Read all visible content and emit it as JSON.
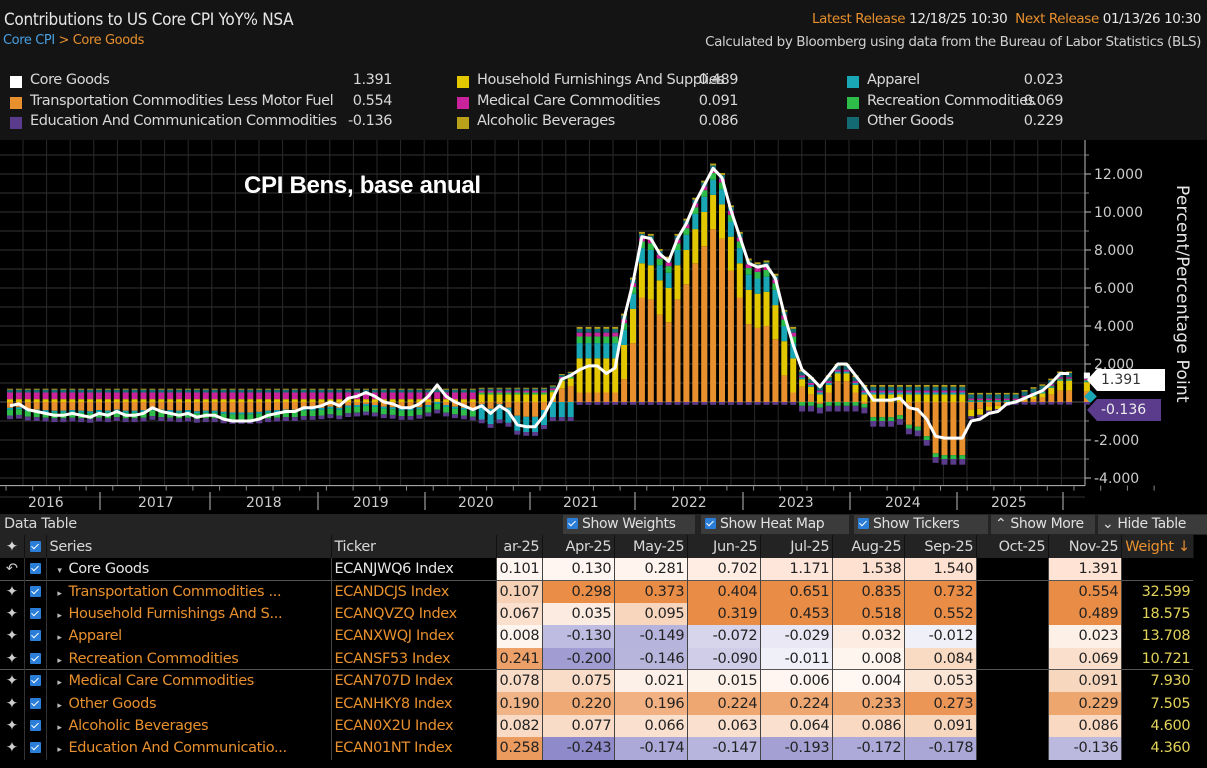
{
  "header": {
    "title": "Contributions to US Core CPI YoY% NSA",
    "breadcrumb": {
      "root": "Core CPI",
      "separator": ">",
      "current": "Core Goods"
    },
    "latest_release_label": "Latest Release",
    "latest_release_value": "12/18/25 10:30",
    "next_release_label": "Next Release",
    "next_release_value": "01/13/26 10:30",
    "source_note": "Calculated by Bloomberg using data from the Bureau of Labor Statistics (BLS)"
  },
  "legend": [
    {
      "name": "Core Goods",
      "value": "1.391",
      "color": "#ffffff"
    },
    {
      "name": "Transportation Commodities Less Motor Fuel",
      "value": "0.554",
      "color": "#e8902e"
    },
    {
      "name": "Education And Communication Commodities",
      "value": "-0.136",
      "color": "#5b3b8c"
    },
    {
      "name": "Household Furnishings And Supplies",
      "value": "0.489",
      "color": "#e3c800"
    },
    {
      "name": "Medical Care Commodities",
      "value": "0.091",
      "color": "#c8239a"
    },
    {
      "name": "Alcoholic Beverages",
      "value": "0.086",
      "color": "#b9a21a"
    },
    {
      "name": "Apparel",
      "value": "0.023",
      "color": "#19a7b5"
    },
    {
      "name": "Recreation Commodities",
      "value": "0.069",
      "color": "#2fbd4a"
    },
    {
      "name": "Other Goods",
      "value": "0.229",
      "color": "#136a72"
    }
  ],
  "annotation": "CPI Bens, base anual",
  "tags": {
    "core_goods": "1.391",
    "education": "-0.136"
  },
  "chart_data": {
    "type": "bar",
    "subtype": "stacked-bar-with-line",
    "title": "Contributions to US Core CPI YoY% NSA",
    "xlabel": "",
    "ylabel": "Percent/Percentage Point",
    "ylim": [
      -4,
      13
    ],
    "yticks": [
      "12.000",
      "10.000",
      "8.000",
      "6.000",
      "4.000",
      "2.000",
      "-2.000",
      "-4.000"
    ],
    "ytick_values": [
      12,
      10,
      8,
      6,
      4,
      2,
      -2,
      -4
    ],
    "xtick_labels": [
      "2016",
      "2017",
      "2018",
      "2019",
      "2020",
      "2021",
      "2022",
      "2023",
      "2024",
      "2025"
    ],
    "grid": true,
    "legend_position": "top",
    "x_start": "2015-12",
    "line_series": {
      "name": "Core Goods",
      "color": "#ffffff",
      "values": [
        -0.2,
        -0.1,
        -0.4,
        -0.5,
        -0.6,
        -0.7,
        -0.7,
        -0.6,
        -0.7,
        -0.8,
        -0.6,
        -0.7,
        -0.5,
        -0.7,
        -0.7,
        -0.6,
        -0.3,
        -0.5,
        -0.6,
        -0.7,
        -0.6,
        -0.8,
        -0.7,
        -0.7,
        -0.9,
        -1.0,
        -1.0,
        -1.0,
        -0.9,
        -0.7,
        -0.6,
        -0.5,
        -0.5,
        -0.3,
        -0.3,
        -0.2,
        0.0,
        -0.2,
        0.2,
        0.3,
        0.5,
        0.3,
        0.0,
        -0.1,
        -0.3,
        -0.3,
        -0.1,
        0.3,
        0.9,
        0.3,
        0.0,
        -0.2,
        -0.4,
        -0.2,
        -0.6,
        -0.2,
        -0.5,
        -1.2,
        -1.3,
        -1.3,
        -0.7,
        0.2,
        1.2,
        1.4,
        1.7,
        1.9,
        1.9,
        1.5,
        1.8,
        4.4,
        6.3,
        8.7,
        8.6,
        7.8,
        7.4,
        8.6,
        9.4,
        10.5,
        11.4,
        12.3,
        11.8,
        10.1,
        8.7,
        7.3,
        7.1,
        7.2,
        6.5,
        4.6,
        3.0,
        1.7,
        1.3,
        0.8,
        1.4,
        2.0,
        2.0,
        1.4,
        0.8,
        0.1,
        0.1,
        0.1,
        0.2,
        -0.3,
        -0.4,
        -0.9,
        -1.8,
        -1.9,
        -1.9,
        -1.9,
        -1.0,
        -0.9,
        -0.6,
        -0.5,
        -0.1,
        0.0,
        0.2,
        0.4,
        0.6,
        1.0,
        1.5,
        1.5,
        null,
        1.391
      ]
    },
    "bar_series": [
      {
        "name": "Transportation Commodities Less Motor Fuel",
        "color": "#e8902e"
      },
      {
        "name": "Household Furnishings And Supplies",
        "color": "#e3c800"
      },
      {
        "name": "Apparel",
        "color": "#19a7b5"
      },
      {
        "name": "Recreation Commodities",
        "color": "#2fbd4a"
      },
      {
        "name": "Medical Care Commodities",
        "color": "#c8239a"
      },
      {
        "name": "Other Goods",
        "color": "#136a72"
      },
      {
        "name": "Alcoholic Beverages",
        "color": "#b9a21a"
      },
      {
        "name": "Education And Communication Commodities",
        "color": "#5b3b8c"
      }
    ],
    "latest_values": {
      "Core Goods": 1.391,
      "Transportation Commodities Less Motor Fuel": 0.554,
      "Household Furnishings And Supplies": 0.489,
      "Apparel": 0.023,
      "Recreation Commodities": 0.069,
      "Medical Care Commodities": 0.091,
      "Other Goods": 0.229,
      "Alcoholic Beverages": 0.086,
      "Education And Communication Commodities": -0.136
    }
  },
  "table": {
    "bar_title": "Data Table",
    "buttons": {
      "show_weights": "Show Weights",
      "show_heat_map": "Show Heat Map",
      "show_tickers": "Show Tickers",
      "show_more": "Show More",
      "hide_table": "Hide Table"
    },
    "columns": {
      "series": "Series",
      "ticker": "Ticker",
      "months": [
        "ar-25",
        "Apr-25",
        "May-25",
        "Jun-25",
        "Jul-25",
        "Aug-25",
        "Sep-25",
        "Oct-25",
        "Nov-25"
      ],
      "weight": "Weight ↓"
    },
    "rows": [
      {
        "series": "Core Goods",
        "ticker": "ECANJWQ6 Index",
        "values": [
          "0.101",
          "0.130",
          "0.281",
          "0.702",
          "1.171",
          "1.538",
          "1.540",
          "",
          "1.391"
        ],
        "weight": "",
        "core": true
      },
      {
        "series": "Transportation Commodities ...",
        "ticker": "ECANDCJS Index",
        "values": [
          "0.107",
          "0.298",
          "0.373",
          "0.404",
          "0.651",
          "0.835",
          "0.732",
          "",
          "0.554"
        ],
        "weight": "32.599"
      },
      {
        "series": "Household Furnishings And S...",
        "ticker": "ECANQVZQ Index",
        "values": [
          "0.067",
          "0.035",
          "0.095",
          "0.319",
          "0.453",
          "0.518",
          "0.552",
          "",
          "0.489"
        ],
        "weight": "18.575"
      },
      {
        "series": "Apparel",
        "ticker": "ECANXWQJ Index",
        "values": [
          "0.008",
          "-0.130",
          "-0.149",
          "-0.072",
          "-0.029",
          "0.032",
          "-0.012",
          "",
          "0.023"
        ],
        "weight": "13.708"
      },
      {
        "series": "Recreation Commodities",
        "ticker": "ECANSF53 Index",
        "values": [
          "0.241",
          "-0.200",
          "-0.146",
          "-0.090",
          "-0.011",
          "0.008",
          "0.084",
          "",
          "0.069"
        ],
        "weight": "10.721"
      },
      {
        "series": "Medical Care Commodities",
        "ticker": "ECAN707D Index",
        "values": [
          "0.078",
          "0.075",
          "0.021",
          "0.015",
          "0.006",
          "0.004",
          "0.053",
          "",
          "0.091"
        ],
        "weight": "7.930"
      },
      {
        "series": "Other Goods",
        "ticker": "ECANHKY8 Index",
        "values": [
          "0.190",
          "0.220",
          "0.196",
          "0.224",
          "0.224",
          "0.233",
          "0.273",
          "",
          "0.229"
        ],
        "weight": "7.505"
      },
      {
        "series": "Alcoholic Beverages",
        "ticker": "ECAN0X2U Index",
        "values": [
          "0.082",
          "0.077",
          "0.066",
          "0.063",
          "0.064",
          "0.086",
          "0.091",
          "",
          "0.086"
        ],
        "weight": "4.600"
      },
      {
        "series": "Education And Communicatio...",
        "ticker": "ECAN01NT Index",
        "values": [
          "0.258",
          "-0.243",
          "-0.174",
          "-0.147",
          "-0.193",
          "-0.172",
          "-0.178",
          "",
          "-0.136"
        ],
        "weight": "4.360"
      }
    ]
  }
}
